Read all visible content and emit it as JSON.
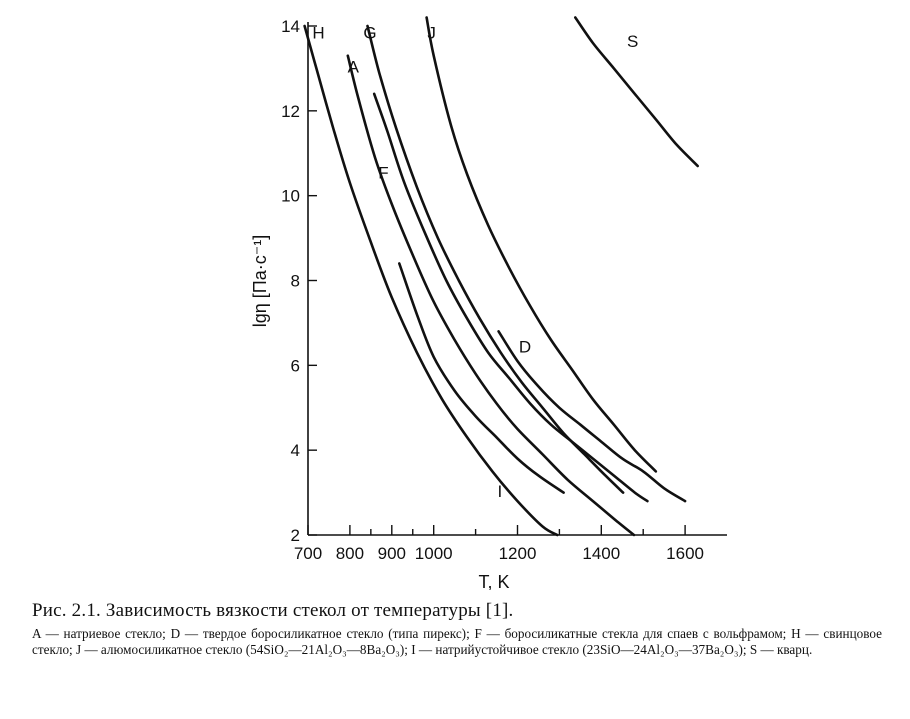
{
  "chart_data": {
    "type": "line",
    "title": "",
    "xlabel": "T, K",
    "ylabel": "lgη [Па·с⁻¹]",
    "xlim": [
      700,
      1700
    ],
    "ylim": [
      2,
      14
    ],
    "x_ticks": [
      {
        "value": 700,
        "label": "700"
      },
      {
        "value": 800,
        "label": "800"
      },
      {
        "value": 900,
        "label": "900"
      },
      {
        "value": 1000,
        "label": "1000"
      },
      {
        "value": 1200,
        "label": "1200"
      },
      {
        "value": 1400,
        "label": "1400"
      },
      {
        "value": 1600,
        "label": "1600"
      }
    ],
    "y_ticks": [
      {
        "value": 2,
        "label": "2"
      },
      {
        "value": 4,
        "label": "4"
      },
      {
        "value": 6,
        "label": "6"
      },
      {
        "value": 8,
        "label": "8"
      },
      {
        "value": 10,
        "label": "10"
      },
      {
        "value": 12,
        "label": "12"
      },
      {
        "value": 14,
        "label": "14"
      }
    ],
    "series": [
      {
        "name": "H",
        "label": "H",
        "label_at": [
          725,
          13.7
        ],
        "x": [
          692,
          720,
          760,
          800,
          850,
          900,
          960,
          1020,
          1080,
          1140,
          1200,
          1260,
          1295
        ],
        "y": [
          14.0,
          13.0,
          11.6,
          10.3,
          8.9,
          7.6,
          6.3,
          5.2,
          4.3,
          3.5,
          2.8,
          2.2,
          2.0
        ]
      },
      {
        "name": "A",
        "label": "A",
        "label_at": [
          808,
          12.9
        ],
        "x": [
          795,
          820,
          860,
          900,
          950,
          1000,
          1050,
          1100,
          1150,
          1200,
          1260,
          1320,
          1380,
          1440,
          1478
        ],
        "y": [
          13.3,
          12.3,
          10.9,
          9.8,
          8.6,
          7.5,
          6.6,
          5.8,
          5.1,
          4.5,
          3.9,
          3.3,
          2.8,
          2.3,
          2.0
        ]
      },
      {
        "name": "G",
        "label": "G",
        "label_at": [
          848,
          13.7
        ],
        "x": [
          842,
          870,
          910,
          960,
          1010,
          1060,
          1110,
          1160,
          1210,
          1260,
          1310,
          1360,
          1410,
          1452
        ],
        "y": [
          14.0,
          12.9,
          11.6,
          10.2,
          9.0,
          8.0,
          7.1,
          6.3,
          5.6,
          5.0,
          4.4,
          3.9,
          3.4,
          3.0
        ]
      },
      {
        "name": "F",
        "label": "F",
        "label_at": [
          880,
          10.4
        ],
        "x": [
          858,
          890,
          930,
          980,
          1030,
          1080,
          1130,
          1180,
          1230,
          1280,
          1330,
          1380,
          1430,
          1480,
          1510
        ],
        "y": [
          12.4,
          11.5,
          10.3,
          9.1,
          8.0,
          7.1,
          6.3,
          5.7,
          5.1,
          4.6,
          4.2,
          3.8,
          3.4,
          3.0,
          2.8
        ]
      },
      {
        "name": "J",
        "label": "J",
        "label_at": [
          995,
          13.7
        ],
        "x": [
          983,
          1000,
          1040,
          1080,
          1130,
          1180,
          1230,
          1280,
          1330,
          1380,
          1430,
          1480,
          1530
        ],
        "y": [
          14.2,
          13.3,
          11.7,
          10.5,
          9.3,
          8.3,
          7.4,
          6.6,
          5.9,
          5.2,
          4.6,
          4.0,
          3.5
        ]
      },
      {
        "name": "D",
        "label": "D",
        "label_at": [
          1218,
          6.3
        ],
        "x": [
          1155,
          1200,
          1250,
          1300,
          1350,
          1400,
          1450,
          1500,
          1550,
          1600
        ],
        "y": [
          6.8,
          6.1,
          5.5,
          5.0,
          4.6,
          4.2,
          3.8,
          3.5,
          3.1,
          2.8
        ]
      },
      {
        "name": "I",
        "label": "I",
        "label_at": [
          1158,
          2.9
        ],
        "x": [
          918,
          960,
          1000,
          1050,
          1100,
          1150,
          1200,
          1250,
          1310
        ],
        "y": [
          8.4,
          7.2,
          6.2,
          5.4,
          4.8,
          4.3,
          3.8,
          3.4,
          3.0
        ]
      },
      {
        "name": "S",
        "label": "S",
        "label_at": [
          1475,
          13.5
        ],
        "x": [
          1338,
          1380,
          1430,
          1480,
          1530,
          1580,
          1630
        ],
        "y": [
          14.2,
          13.6,
          13.0,
          12.4,
          11.8,
          11.2,
          10.7
        ]
      }
    ]
  },
  "caption": {
    "title": "Рис. 2.1. Зависимость вязкости стекол от температуры [1].",
    "legend": "A — натриевое стекло; D — твердое боросиликатное стекло (типа пирекс); F — боросиликатные стекла для спаев с вольфрамом; H — свинцовое стекло; J — алюмосиликатное стекло (54SiO₂—21Al₂O₃—8Ba₂O₃); I — натрийустойчивое стекло (23SiO—24Al₂O₃—37Ba₂O₃); S — кварц."
  }
}
